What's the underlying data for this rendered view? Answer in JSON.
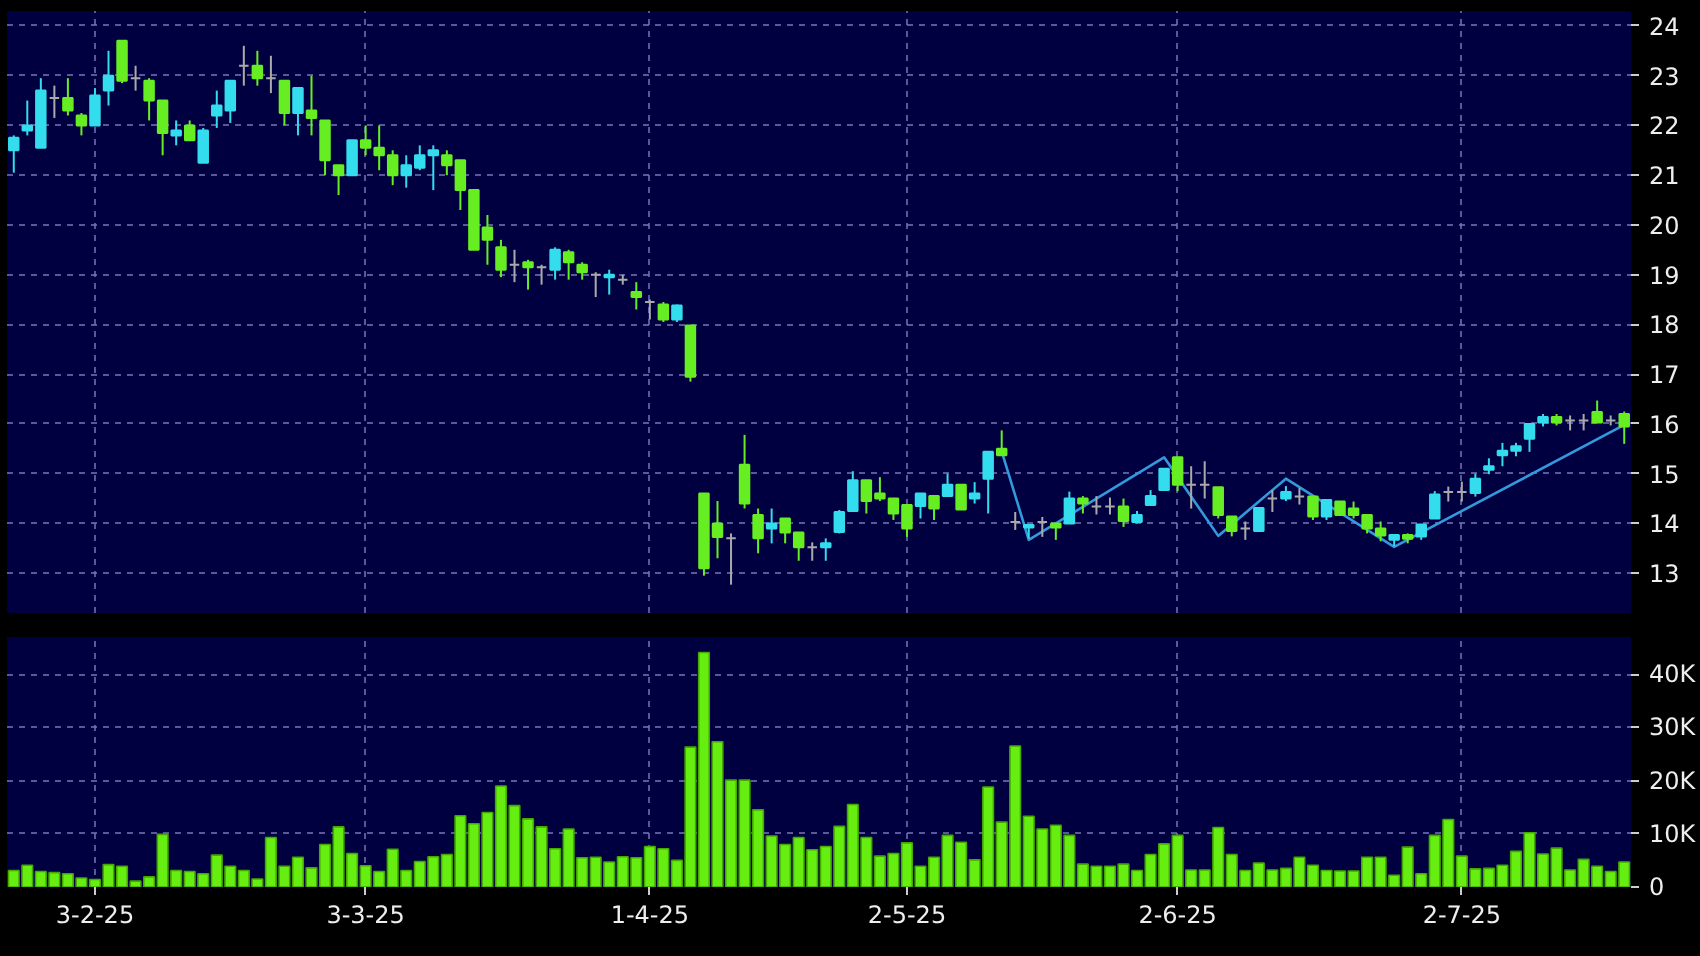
{
  "chart_data": [
    {
      "type": "candlestick",
      "categories": [
        null,
        null,
        null,
        null,
        null,
        null,
        null,
        null,
        null,
        null,
        null,
        null,
        null,
        null,
        null,
        null,
        null,
        null,
        null,
        null,
        null,
        null,
        null,
        null,
        null,
        null,
        null,
        null,
        null,
        null,
        null,
        null,
        null,
        null,
        null,
        null,
        null,
        null,
        null,
        null,
        null,
        null,
        null,
        null,
        null,
        null,
        null,
        null,
        null,
        null,
        null,
        null,
        null,
        null,
        null,
        null,
        null,
        null,
        null,
        null,
        null,
        null,
        null,
        null,
        null,
        null,
        null,
        null,
        null,
        null,
        null,
        null,
        null,
        null,
        null,
        null,
        null,
        null,
        null,
        null,
        null,
        null,
        null,
        null,
        null,
        null,
        null,
        null,
        null,
        null,
        null,
        null,
        null,
        null,
        null,
        null,
        null,
        null,
        null,
        null,
        null,
        null,
        null,
        null,
        null,
        null,
        null,
        null,
        null,
        null,
        null,
        null,
        null,
        null,
        null,
        null,
        null,
        null,
        null,
        null
      ],
      "ohlc": [
        [
          21.5,
          21.8,
          21.05,
          21.75
        ],
        [
          21.9,
          22.5,
          21.8,
          22.0
        ],
        [
          21.55,
          22.95,
          21.55,
          22.7
        ],
        [
          22.55,
          22.8,
          22.15,
          22.55
        ],
        [
          22.55,
          22.95,
          22.2,
          22.3
        ],
        [
          22.2,
          22.25,
          21.8,
          22.0
        ],
        [
          22.0,
          22.75,
          22.0,
          22.6
        ],
        [
          22.7,
          23.5,
          22.4,
          23.0
        ],
        [
          23.7,
          23.7,
          22.85,
          22.9
        ],
        [
          22.95,
          23.2,
          22.7,
          22.95
        ],
        [
          22.9,
          22.95,
          22.1,
          22.5
        ],
        [
          22.5,
          22.5,
          21.4,
          21.85
        ],
        [
          21.8,
          22.1,
          21.6,
          21.9
        ],
        [
          22.0,
          22.1,
          21.7,
          21.7
        ],
        [
          21.25,
          21.95,
          21.25,
          21.9
        ],
        [
          22.2,
          22.7,
          21.95,
          22.4
        ],
        [
          22.3,
          22.9,
          22.05,
          22.9
        ],
        [
          23.2,
          23.6,
          22.8,
          23.2
        ],
        [
          23.2,
          23.5,
          22.8,
          22.95
        ],
        [
          22.95,
          23.4,
          22.65,
          22.95
        ],
        [
          22.9,
          22.9,
          22.0,
          22.25
        ],
        [
          22.25,
          22.75,
          21.8,
          22.75
        ],
        [
          22.3,
          23.0,
          21.8,
          22.15
        ],
        [
          22.1,
          22.1,
          21.0,
          21.3
        ],
        [
          21.2,
          21.2,
          20.6,
          21.0
        ],
        [
          21.0,
          21.7,
          21.0,
          21.7
        ],
        [
          21.7,
          22.0,
          21.4,
          21.55
        ],
        [
          21.55,
          22.0,
          21.1,
          21.4
        ],
        [
          21.4,
          21.5,
          20.8,
          21.0
        ],
        [
          21.0,
          21.4,
          20.75,
          21.2
        ],
        [
          21.15,
          21.6,
          21.1,
          21.4
        ],
        [
          21.4,
          21.6,
          20.7,
          21.5
        ],
        [
          21.4,
          21.5,
          21.0,
          21.2
        ],
        [
          21.3,
          21.3,
          20.3,
          20.7
        ],
        [
          20.7,
          20.7,
          19.5,
          19.5
        ],
        [
          19.95,
          20.2,
          19.2,
          19.7
        ],
        [
          19.55,
          19.7,
          18.95,
          19.1
        ],
        [
          19.2,
          19.5,
          18.85,
          19.2
        ],
        [
          19.25,
          19.3,
          18.7,
          19.15
        ],
        [
          19.15,
          19.2,
          18.8,
          19.15
        ],
        [
          19.1,
          19.55,
          18.9,
          19.5
        ],
        [
          19.45,
          19.5,
          18.9,
          19.25
        ],
        [
          19.2,
          19.25,
          18.9,
          19.05
        ],
        [
          19.0,
          19.05,
          18.55,
          19.0
        ],
        [
          18.95,
          19.1,
          18.6,
          19.0
        ],
        [
          18.9,
          19.0,
          18.8,
          18.9
        ],
        [
          18.65,
          18.85,
          18.3,
          18.55
        ],
        [
          18.45,
          18.5,
          18.1,
          18.45
        ],
        [
          18.4,
          18.45,
          18.05,
          18.1
        ],
        [
          18.1,
          18.4,
          18.05,
          18.38
        ],
        [
          17.98,
          17.98,
          16.85,
          16.95
        ],
        [
          14.6,
          14.6,
          12.95,
          13.1
        ],
        [
          14.0,
          14.45,
          13.3,
          13.73
        ],
        [
          13.7,
          13.8,
          12.77,
          13.7
        ],
        [
          15.18,
          15.78,
          14.3,
          14.4
        ],
        [
          14.17,
          14.3,
          13.4,
          13.7
        ],
        [
          13.9,
          14.3,
          13.6,
          14.0
        ],
        [
          14.1,
          14.1,
          13.6,
          13.82
        ],
        [
          13.82,
          13.82,
          13.25,
          13.52
        ],
        [
          13.52,
          13.62,
          13.25,
          13.52
        ],
        [
          13.52,
          13.7,
          13.25,
          13.6
        ],
        [
          13.83,
          14.27,
          13.8,
          14.23
        ],
        [
          14.25,
          15.05,
          14.25,
          14.87
        ],
        [
          14.87,
          14.87,
          14.2,
          14.45
        ],
        [
          14.6,
          14.93,
          14.45,
          14.5
        ],
        [
          14.5,
          14.5,
          14.07,
          14.2
        ],
        [
          14.37,
          14.37,
          13.73,
          13.9
        ],
        [
          14.35,
          14.6,
          14.1,
          14.6
        ],
        [
          14.55,
          14.55,
          14.07,
          14.3
        ],
        [
          14.55,
          15.0,
          14.55,
          14.78
        ],
        [
          14.78,
          14.78,
          14.28,
          14.28
        ],
        [
          14.5,
          14.83,
          14.4,
          14.6
        ],
        [
          14.9,
          15.44,
          14.2,
          15.44
        ],
        [
          15.5,
          15.87,
          15.37,
          15.37
        ],
        [
          14.03,
          14.23,
          13.87,
          14.03
        ],
        [
          13.92,
          13.97,
          13.7,
          13.97
        ],
        [
          14.03,
          14.13,
          13.73,
          14.03
        ],
        [
          14.0,
          14.0,
          13.67,
          13.92
        ],
        [
          14.0,
          14.64,
          14.0,
          14.5
        ],
        [
          14.5,
          14.55,
          14.2,
          14.4
        ],
        [
          14.34,
          14.55,
          14.18,
          14.34
        ],
        [
          14.34,
          14.52,
          14.18,
          14.34
        ],
        [
          14.34,
          14.5,
          13.93,
          14.05
        ],
        [
          14.03,
          14.25,
          14.0,
          14.17
        ],
        [
          14.37,
          14.67,
          14.37,
          14.55
        ],
        [
          14.67,
          15.1,
          14.67,
          15.1
        ],
        [
          15.33,
          15.33,
          14.65,
          14.78
        ],
        [
          14.78,
          15.15,
          14.3,
          14.78
        ],
        [
          14.78,
          15.25,
          14.5,
          14.78
        ],
        [
          14.73,
          14.73,
          14.1,
          14.17
        ],
        [
          14.14,
          14.14,
          13.74,
          13.85
        ],
        [
          13.9,
          14.04,
          13.67,
          13.9
        ],
        [
          13.85,
          14.31,
          13.85,
          14.31
        ],
        [
          14.5,
          14.67,
          14.23,
          14.5
        ],
        [
          14.5,
          14.75,
          14.45,
          14.63
        ],
        [
          14.54,
          14.71,
          14.38,
          14.54
        ],
        [
          14.54,
          14.54,
          14.07,
          14.14
        ],
        [
          14.14,
          14.47,
          14.07,
          14.47
        ],
        [
          14.44,
          14.44,
          14.17,
          14.17
        ],
        [
          14.3,
          14.44,
          14.1,
          14.17
        ],
        [
          14.17,
          14.17,
          13.8,
          13.9
        ],
        [
          13.9,
          14.04,
          13.64,
          13.76
        ],
        [
          13.67,
          13.77,
          13.54,
          13.77
        ],
        [
          13.77,
          13.8,
          13.6,
          13.69
        ],
        [
          13.74,
          13.98,
          13.67,
          13.98
        ],
        [
          14.1,
          14.65,
          14.1,
          14.58
        ],
        [
          14.63,
          14.74,
          14.44,
          14.63
        ],
        [
          14.63,
          14.84,
          14.44,
          14.63
        ],
        [
          14.61,
          15.0,
          14.54,
          14.9
        ],
        [
          15.08,
          15.31,
          14.99,
          15.15
        ],
        [
          15.37,
          15.62,
          15.15,
          15.46
        ],
        [
          15.46,
          15.62,
          15.35,
          15.55
        ],
        [
          15.7,
          16.0,
          15.44,
          16.0
        ],
        [
          16.03,
          16.2,
          15.95,
          16.14
        ],
        [
          16.14,
          16.2,
          15.97,
          16.03
        ],
        [
          16.07,
          16.17,
          15.87,
          16.07
        ],
        [
          16.07,
          16.2,
          15.87,
          16.07
        ],
        [
          16.24,
          16.47,
          16.03,
          16.03
        ],
        [
          16.07,
          16.17,
          15.97,
          16.07
        ],
        [
          16.2,
          16.25,
          15.6,
          15.95
        ]
      ],
      "colors": [
        "#33ddee",
        "#33ddee",
        "#33ddee",
        "#aaaaaa",
        "#66ee22",
        "#66ee22",
        "#33ddee",
        "#33ddee",
        "#66ee22",
        "#aaaaaa",
        "#66ee22",
        "#66ee22",
        "#33ddee",
        "#66ee22",
        "#33ddee",
        "#33ddee",
        "#33ddee",
        "#aaaaaa",
        "#66ee22",
        "#aaaaaa",
        "#66ee22",
        "#33ddee",
        "#66ee22",
        "#66ee22",
        "#66ee22",
        "#33ddee",
        "#66ee22",
        "#66ee22",
        "#66ee22",
        "#33ddee",
        "#33ddee",
        "#33ddee",
        "#66ee22",
        "#66ee22",
        "#66ee22",
        "#66ee22",
        "#66ee22",
        "#aaaaaa",
        "#66ee22",
        "#aaaaaa",
        "#33ddee",
        "#66ee22",
        "#66ee22",
        "#aaaaaa",
        "#33ddee",
        "#aaaaaa",
        "#66ee22",
        "#aaaaaa",
        "#66ee22",
        "#33ddee",
        "#66ee22",
        "#66ee22",
        "#66ee22",
        "#aaaaaa",
        "#66ee22",
        "#66ee22",
        "#33ddee",
        "#66ee22",
        "#66ee22",
        "#aaaaaa",
        "#33ddee",
        "#33ddee",
        "#33ddee",
        "#66ee22",
        "#66ee22",
        "#66ee22",
        "#66ee22",
        "#33ddee",
        "#66ee22",
        "#33ddee",
        "#66ee22",
        "#33ddee",
        "#33ddee",
        "#66ee22",
        "#aaaaaa",
        "#33ddee",
        "#aaaaaa",
        "#66ee22",
        "#33ddee",
        "#66ee22",
        "#aaaaaa",
        "#aaaaaa",
        "#66ee22",
        "#33ddee",
        "#33ddee",
        "#33ddee",
        "#66ee22",
        "#aaaaaa",
        "#aaaaaa",
        "#66ee22",
        "#66ee22",
        "#aaaaaa",
        "#33ddee",
        "#aaaaaa",
        "#33ddee",
        "#aaaaaa",
        "#66ee22",
        "#33ddee",
        "#66ee22",
        "#66ee22",
        "#66ee22",
        "#66ee22",
        "#33ddee",
        "#66ee22",
        "#33ddee",
        "#33ddee",
        "#aaaaaa",
        "#aaaaaa",
        "#33ddee",
        "#33ddee",
        "#33ddee",
        "#33ddee",
        "#33ddee",
        "#33ddee",
        "#66ee22",
        "#aaaaaa",
        "#aaaaaa",
        "#66ee22",
        "#aaaaaa",
        "#66ee22"
      ],
      "series": [
        {
          "type": "line",
          "color": "#3399dd",
          "values": [
            null,
            null,
            null,
            null,
            null,
            null,
            null,
            null,
            null,
            null,
            null,
            null,
            null,
            null,
            null,
            null,
            null,
            null,
            null,
            null,
            null,
            null,
            null,
            null,
            null,
            null,
            null,
            null,
            null,
            null,
            null,
            null,
            null,
            null,
            null,
            null,
            null,
            null,
            null,
            null,
            null,
            null,
            null,
            null,
            null,
            null,
            null,
            null,
            null,
            null,
            null,
            null,
            null,
            null,
            null,
            null,
            null,
            null,
            null,
            null,
            null,
            null,
            null,
            null,
            null,
            null,
            null,
            null,
            null,
            null,
            null,
            null,
            null,
            15.45,
            null,
            13.67,
            null,
            null,
            null,
            null,
            null,
            null,
            null,
            null,
            null,
            15.33,
            null,
            null,
            null,
            13.75,
            null,
            null,
            null,
            null,
            14.9,
            null,
            null,
            null,
            null,
            null,
            null,
            null,
            13.53,
            null,
            null,
            null,
            null,
            null,
            null,
            null,
            null,
            null,
            null,
            null,
            null,
            null,
            null,
            null,
            null,
            15.98
          ]
        }
      ],
      "ylim": [
        12.2,
        24.3
      ],
      "yticks": [
        13,
        14,
        15,
        16,
        17,
        18,
        19,
        20,
        21,
        22,
        23,
        24
      ],
      "grid": true,
      "tick_labels": "y"
    },
    {
      "type": "bar",
      "color": "#66ee11",
      "categories": [
        null,
        null,
        null,
        null,
        null,
        null,
        "3-2-25",
        null,
        null,
        null,
        null,
        null,
        null,
        null,
        null,
        null,
        null,
        null,
        null,
        null,
        null,
        null,
        null,
        null,
        null,
        null,
        "3-3-25",
        null,
        null,
        null,
        null,
        null,
        null,
        null,
        null,
        null,
        null,
        null,
        null,
        null,
        null,
        null,
        null,
        null,
        null,
        null,
        null,
        "1-4-25",
        null,
        null,
        null,
        null,
        null,
        null,
        null,
        null,
        null,
        null,
        null,
        null,
        null,
        null,
        null,
        null,
        null,
        null,
        "2-5-25",
        null,
        null,
        null,
        null,
        null,
        null,
        null,
        null,
        null,
        null,
        null,
        null,
        null,
        null,
        null,
        null,
        null,
        null,
        null,
        "2-6-25",
        null,
        null,
        null,
        null,
        null,
        null,
        null,
        null,
        null,
        null,
        null,
        null,
        null,
        null,
        null,
        null,
        null,
        null,
        null,
        null,
        "2-7-25",
        null,
        null,
        null,
        null,
        null,
        null,
        null,
        null,
        null,
        null,
        null,
        null
      ],
      "values": [
        3100,
        4100,
        2900,
        2700,
        2500,
        1700,
        1400,
        4200,
        3900,
        1100,
        1900,
        9900,
        3100,
        2900,
        2500,
        6000,
        3900,
        3100,
        1500,
        9300,
        3900,
        5600,
        3600,
        8000,
        11300,
        6300,
        4000,
        2900,
        7100,
        3100,
        4800,
        5700,
        6100,
        13400,
        11900,
        14000,
        19000,
        15300,
        12800,
        11300,
        7200,
        10900,
        5500,
        5600,
        4700,
        5700,
        5500,
        7600,
        7200,
        5000,
        26300,
        44100,
        27300,
        20100,
        20100,
        14500,
        9600,
        8000,
        9300,
        7000,
        7600,
        11400,
        15500,
        9300,
        5800,
        6300,
        8300,
        3900,
        5600,
        9700,
        8400,
        5100,
        18800,
        12200,
        26500,
        13300,
        10900,
        11600,
        9700,
        4300,
        3900,
        3900,
        4300,
        3100,
        6100,
        8100,
        9700,
        3200,
        3200,
        11200,
        6100,
        3100,
        4500,
        3200,
        3500,
        5600,
        4100,
        3100,
        3000,
        3000,
        5600,
        5600,
        2200,
        7500,
        2500,
        9700,
        12700,
        5800,
        3400,
        3500,
        4100,
        6700,
        10200,
        6200,
        7300,
        3200,
        5200,
        3900,
        2900,
        4700
      ],
      "ylim": [
        0,
        47000
      ],
      "yticks": [
        0,
        {
          "value": 10000,
          "label": "10K"
        },
        {
          "value": 20000,
          "label": "20K"
        },
        {
          "value": 30000,
          "label": "30K"
        },
        {
          "value": 40000,
          "label": "40K"
        }
      ],
      "grid": true
    }
  ]
}
